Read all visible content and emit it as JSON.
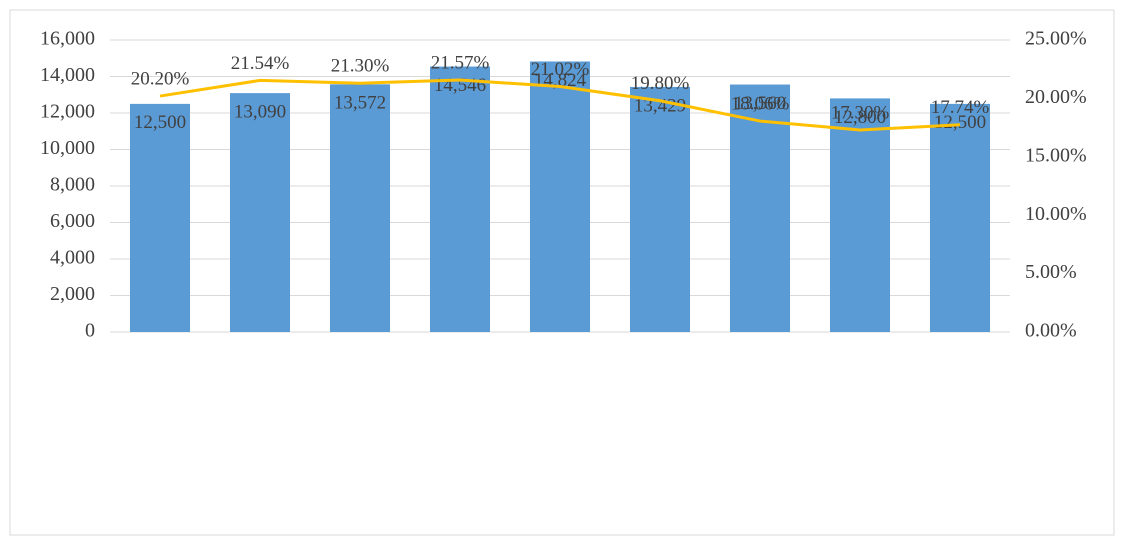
{
  "chart_data": {
    "type": "bar-line",
    "categories": [
      null,
      null,
      null,
      null,
      null,
      null,
      null,
      null,
      null
    ],
    "series": [
      {
        "name": null,
        "type": "bar",
        "color": "#5b9bd5",
        "values": [
          12500,
          13090,
          13572,
          14546,
          14824,
          13429,
          13560,
          12800,
          12500
        ],
        "value_labels": [
          "12,500",
          "13,090",
          "13,572",
          "14,546",
          "14,824",
          "13,429",
          "13,560",
          "12,800",
          "12,500"
        ]
      },
      {
        "name": null,
        "type": "line",
        "axis": "y2",
        "color": "#ffc000",
        "values": [
          20.2,
          21.54,
          21.3,
          21.57,
          21.02,
          19.8,
          18.06,
          17.3,
          17.74
        ],
        "value_labels": [
          "20.20%",
          "21.54%",
          "21.30%",
          "21.57%",
          "21.02%",
          "19.80%",
          "18.06%",
          "17.30%",
          "17.74%"
        ]
      }
    ],
    "ylim": [
      0,
      16000
    ],
    "yticks": [
      0,
      {
        "value": 2000,
        "label": "2,000"
      },
      {
        "value": 4000,
        "label": "4,000"
      },
      {
        "value": 6000,
        "label": "6,000"
      },
      {
        "value": 8000,
        "label": "8,000"
      },
      {
        "value": 10000,
        "label": "10,000"
      },
      {
        "value": 12000,
        "label": "12,000"
      },
      {
        "value": 14000,
        "label": "14,000"
      },
      {
        "value": 16000,
        "label": "16,000"
      }
    ],
    "y2lim": [
      0,
      25
    ],
    "y2ticks": [
      {
        "value": 0,
        "label": "0.00%"
      },
      {
        "value": 5,
        "label": "5.00%"
      },
      {
        "value": 10,
        "label": "10.00%"
      },
      {
        "value": 15,
        "label": "15.00%"
      },
      {
        "value": 20,
        "label": "20.00%"
      },
      {
        "value": 25,
        "label": "25.00%"
      }
    ],
    "grid": true
  }
}
